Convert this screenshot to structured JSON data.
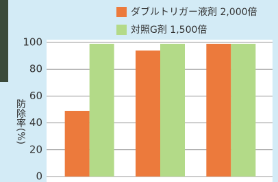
{
  "chart_data": {
    "type": "bar",
    "categories": [
      null,
      null,
      null
    ],
    "series": [
      {
        "name": "ダブルトリガー液剤 2,000倍",
        "color": "#ec7a3c",
        "values": [
          49,
          94,
          99
        ]
      },
      {
        "name": "対照G剤 1,500倍",
        "color": "#b3da88",
        "values": [
          99,
          99,
          99
        ]
      }
    ],
    "ylabel": "防除率(%)",
    "ylim": [
      0,
      100
    ],
    "yticks": [
      0,
      20,
      40,
      60,
      80,
      100
    ],
    "grid": true
  }
}
